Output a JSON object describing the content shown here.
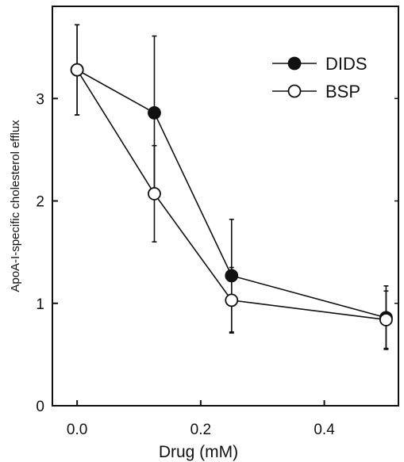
{
  "chart_data": {
    "type": "line",
    "title": "",
    "xlabel": "Drug (mM)",
    "ylabel": "ApoA-I-specific cholesterol efflux",
    "xlim": [
      -0.04,
      0.52
    ],
    "ylim": [
      0,
      3.9
    ],
    "x_ticks": [
      0.0,
      0.2,
      0.4
    ],
    "x_tick_labels": [
      "0.0",
      "0.2",
      "0.4"
    ],
    "y_ticks": [
      0,
      1,
      2,
      3
    ],
    "y_tick_labels": [
      "0",
      "1",
      "2",
      "3"
    ],
    "grid": false,
    "legend_position": "top-right",
    "series": [
      {
        "name": "DIDS",
        "marker": "filled-circle",
        "color": "#111111",
        "x": [
          0.0,
          0.125,
          0.25,
          0.5
        ],
        "y": [
          3.28,
          2.86,
          1.27,
          0.86
        ],
        "err": [
          0.44,
          0.75,
          0.55,
          0.31
        ]
      },
      {
        "name": "BSP",
        "marker": "open-circle",
        "color": "#111111",
        "x": [
          0.0,
          0.125,
          0.25,
          0.5
        ],
        "y": [
          3.28,
          2.07,
          1.03,
          0.84
        ],
        "err": [
          0.44,
          0.47,
          0.32,
          0.28
        ]
      }
    ]
  }
}
